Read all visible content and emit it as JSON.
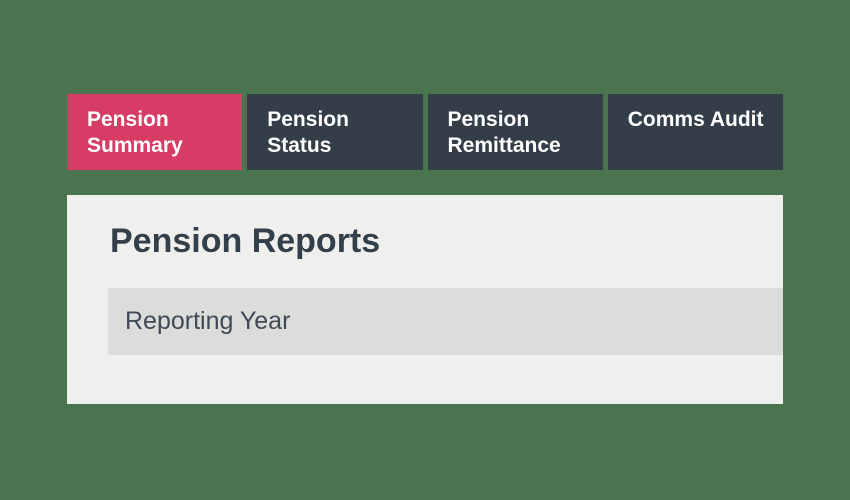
{
  "theme": {
    "background": "#4a7350",
    "active_tab": "#d63c64",
    "inactive_tab": "#333e48",
    "tab_text": "#ffffff",
    "panel_bg": "#efefed",
    "bar_bg": "#dcdcdb",
    "heading_color": "#333f4a",
    "text_color": "#3e4a55"
  },
  "tabs": [
    {
      "label": "Pension Summary",
      "active": true
    },
    {
      "label": "Pension Status",
      "active": false
    },
    {
      "label": "Pension Remittance",
      "active": false
    },
    {
      "label": "Comms Audit",
      "active": false
    }
  ],
  "panel": {
    "title": "Pension Reports",
    "filter_label": "Reporting Year"
  }
}
